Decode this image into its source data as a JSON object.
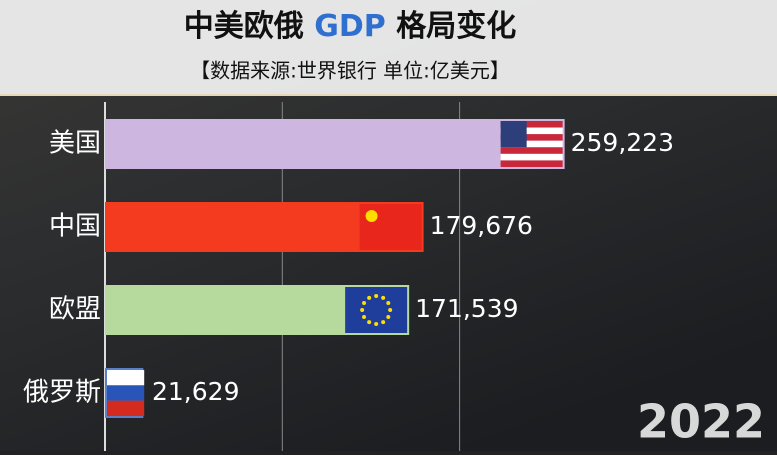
{
  "chart_data": {
    "type": "bar",
    "orientation": "horizontal",
    "title": [
      "中美欧俄",
      "GDP",
      "格局变化"
    ],
    "subtitle": "【数据来源:世界银行 单位:亿美元】",
    "annotation": "2022",
    "categories": [
      "美国",
      "中国",
      "欧盟",
      "俄罗斯"
    ],
    "values": [
      259223,
      179676,
      171539,
      21629
    ],
    "value_labels": [
      "259,223",
      "179,676",
      "171,539",
      "21,629"
    ],
    "colors": [
      "#cdb6df",
      "#f43b1f",
      "#b6da9d",
      "#5a7fc8"
    ],
    "xlim": [
      0,
      260000
    ],
    "xticks": [
      0,
      100000,
      200000
    ],
    "grid": true
  }
}
